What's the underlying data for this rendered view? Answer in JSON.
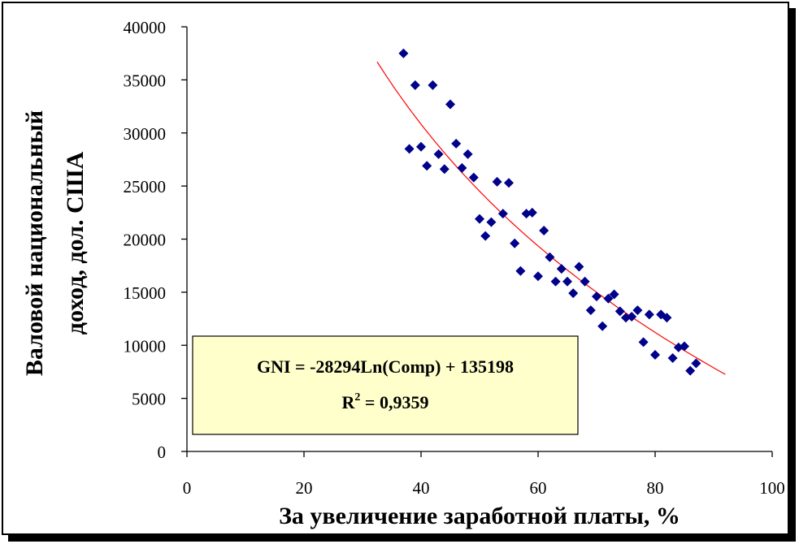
{
  "chart_data": {
    "type": "scatter",
    "xlabel": "За увеличение заработной платы, %",
    "ylabel_lines": [
      "Валовой национальный",
      "доход, дол. США"
    ],
    "xlim": [
      0,
      100
    ],
    "ylim": [
      0,
      40000
    ],
    "x_ticks": [
      "0",
      "20",
      "40",
      "60",
      "80",
      "100"
    ],
    "y_ticks": [
      "0",
      "5000",
      "10000",
      "15000",
      "20000",
      "25000",
      "30000",
      "35000",
      "40000"
    ],
    "grid": false,
    "legend": "none",
    "marker_color": "#00008B",
    "trend_color": "#FF0000",
    "equation": {
      "line1": "GNI = -28294Ln(Comp) + 135198",
      "r2_prefix": "R",
      "r2_sup": "2",
      "r2_suffix": " = 0,9359",
      "box_fill": "#FFFFCC"
    },
    "trendline": {
      "type": "logarithmic",
      "a": -28294,
      "b": 135198,
      "x_from": 32.5,
      "x_to": 92
    },
    "points": [
      {
        "x": 37,
        "y": 37500
      },
      {
        "x": 38,
        "y": 28500
      },
      {
        "x": 39,
        "y": 34500
      },
      {
        "x": 40,
        "y": 28700
      },
      {
        "x": 41,
        "y": 26900
      },
      {
        "x": 42,
        "y": 34500
      },
      {
        "x": 43,
        "y": 28000
      },
      {
        "x": 44,
        "y": 26600
      },
      {
        "x": 45,
        "y": 32700
      },
      {
        "x": 46,
        "y": 29000
      },
      {
        "x": 47,
        "y": 26700
      },
      {
        "x": 48,
        "y": 28000
      },
      {
        "x": 49,
        "y": 25800
      },
      {
        "x": 50,
        "y": 21900
      },
      {
        "x": 51,
        "y": 20300
      },
      {
        "x": 52,
        "y": 21600
      },
      {
        "x": 53,
        "y": 25400
      },
      {
        "x": 54,
        "y": 22400
      },
      {
        "x": 55,
        "y": 25300
      },
      {
        "x": 56,
        "y": 19600
      },
      {
        "x": 57,
        "y": 17000
      },
      {
        "x": 58,
        "y": 22400
      },
      {
        "x": 59,
        "y": 22500
      },
      {
        "x": 60,
        "y": 16500
      },
      {
        "x": 61,
        "y": 20800
      },
      {
        "x": 62,
        "y": 18300
      },
      {
        "x": 63,
        "y": 16000
      },
      {
        "x": 64,
        "y": 17200
      },
      {
        "x": 65,
        "y": 16000
      },
      {
        "x": 66,
        "y": 14900
      },
      {
        "x": 67,
        "y": 17400
      },
      {
        "x": 68,
        "y": 16000
      },
      {
        "x": 69,
        "y": 13300
      },
      {
        "x": 70,
        "y": 14600
      },
      {
        "x": 71,
        "y": 11800
      },
      {
        "x": 72,
        "y": 14400
      },
      {
        "x": 73,
        "y": 14800
      },
      {
        "x": 74,
        "y": 13200
      },
      {
        "x": 75,
        "y": 12600
      },
      {
        "x": 76,
        "y": 12700
      },
      {
        "x": 77,
        "y": 13300
      },
      {
        "x": 78,
        "y": 10300
      },
      {
        "x": 79,
        "y": 12900
      },
      {
        "x": 80,
        "y": 9100
      },
      {
        "x": 81,
        "y": 12900
      },
      {
        "x": 82,
        "y": 12600
      },
      {
        "x": 83,
        "y": 8800
      },
      {
        "x": 84,
        "y": 9800
      },
      {
        "x": 85,
        "y": 9900
      },
      {
        "x": 86,
        "y": 7600
      },
      {
        "x": 87,
        "y": 8300
      }
    ]
  }
}
